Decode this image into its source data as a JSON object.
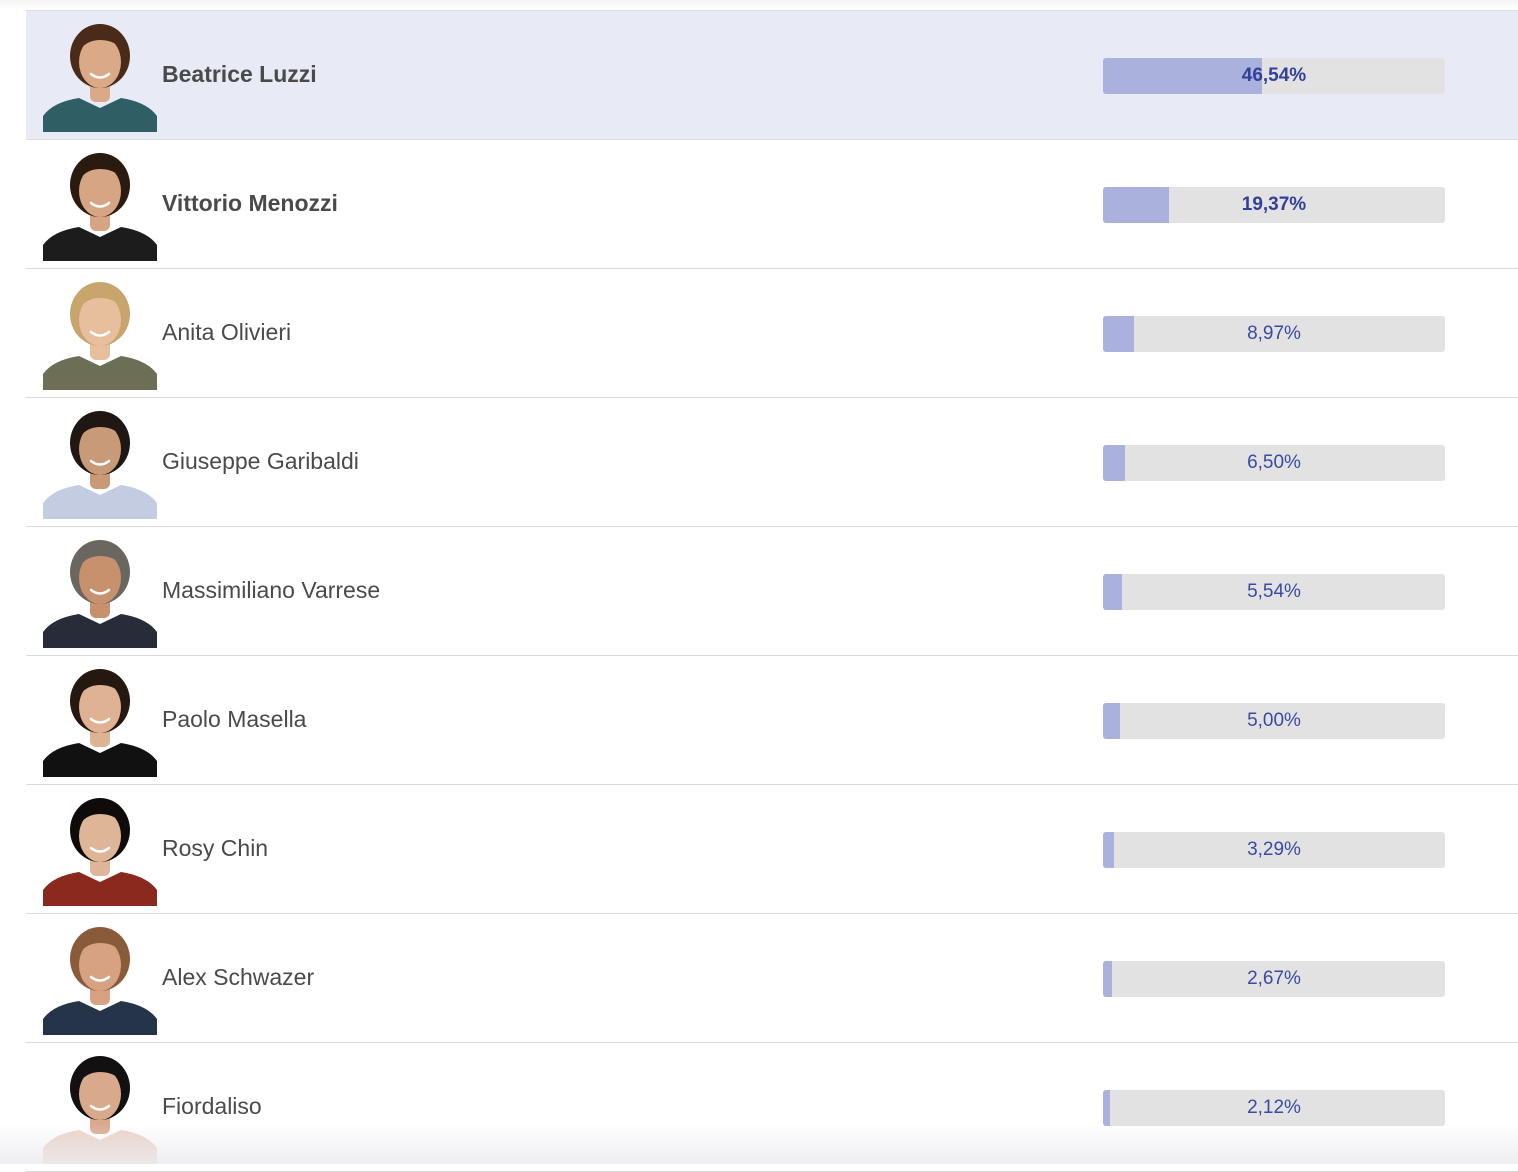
{
  "poll": {
    "candidates": [
      {
        "name": "Beatrice Luzzi",
        "percent_label": "46,54%",
        "percent": 46.54,
        "highlighted": true,
        "bold": true,
        "avatar": {
          "hair": "#4a2a18",
          "skin": "#d9a988",
          "shirt": "#2f5f64"
        }
      },
      {
        "name": "Vittorio Menozzi",
        "percent_label": "19,37%",
        "percent": 19.37,
        "highlighted": false,
        "bold": true,
        "avatar": {
          "hair": "#2b1a10",
          "skin": "#d6a584",
          "shirt": "#1c1c1c"
        }
      },
      {
        "name": "Anita Olivieri",
        "percent_label": "8,97%",
        "percent": 8.97,
        "highlighted": false,
        "bold": false,
        "avatar": {
          "hair": "#c9a56e",
          "skin": "#e7bf9c",
          "shirt": "#6c6e55"
        }
      },
      {
        "name": "Giuseppe Garibaldi",
        "percent_label": "6,50%",
        "percent": 6.5,
        "highlighted": false,
        "bold": false,
        "avatar": {
          "hair": "#1e1713",
          "skin": "#c99a78",
          "shirt": "#c3cce0"
        }
      },
      {
        "name": "Massimiliano Varrese",
        "percent_label": "5,54%",
        "percent": 5.54,
        "highlighted": false,
        "bold": false,
        "avatar": {
          "hair": "#6a6660",
          "skin": "#c8916d",
          "shirt": "#272c38"
        }
      },
      {
        "name": "Paolo Masella",
        "percent_label": "5,00%",
        "percent": 5.0,
        "highlighted": false,
        "bold": false,
        "avatar": {
          "hair": "#241810",
          "skin": "#e0b294",
          "shirt": "#111111"
        }
      },
      {
        "name": "Rosy Chin",
        "percent_label": "3,29%",
        "percent": 3.29,
        "highlighted": false,
        "bold": false,
        "avatar": {
          "hair": "#0e0b0a",
          "skin": "#dfb598",
          "shirt": "#8a2a1f"
        }
      },
      {
        "name": "Alex Schwazer",
        "percent_label": "2,67%",
        "percent": 2.67,
        "highlighted": false,
        "bold": false,
        "avatar": {
          "hair": "#8a5b3a",
          "skin": "#d6a282",
          "shirt": "#26344a"
        }
      },
      {
        "name": "Fiordaliso",
        "percent_label": "2,12%",
        "percent": 2.12,
        "highlighted": false,
        "bold": false,
        "avatar": {
          "hair": "#121010",
          "skin": "#d9a98c",
          "shirt": "#ead2c8"
        }
      }
    ]
  },
  "colors": {
    "highlight_row": "#e8eaf5",
    "bar_track": "#e2e2e2",
    "bar_fill": "#aab1dd",
    "percent_text": "#3a4aa3",
    "name_text": "#4a4a4a"
  }
}
